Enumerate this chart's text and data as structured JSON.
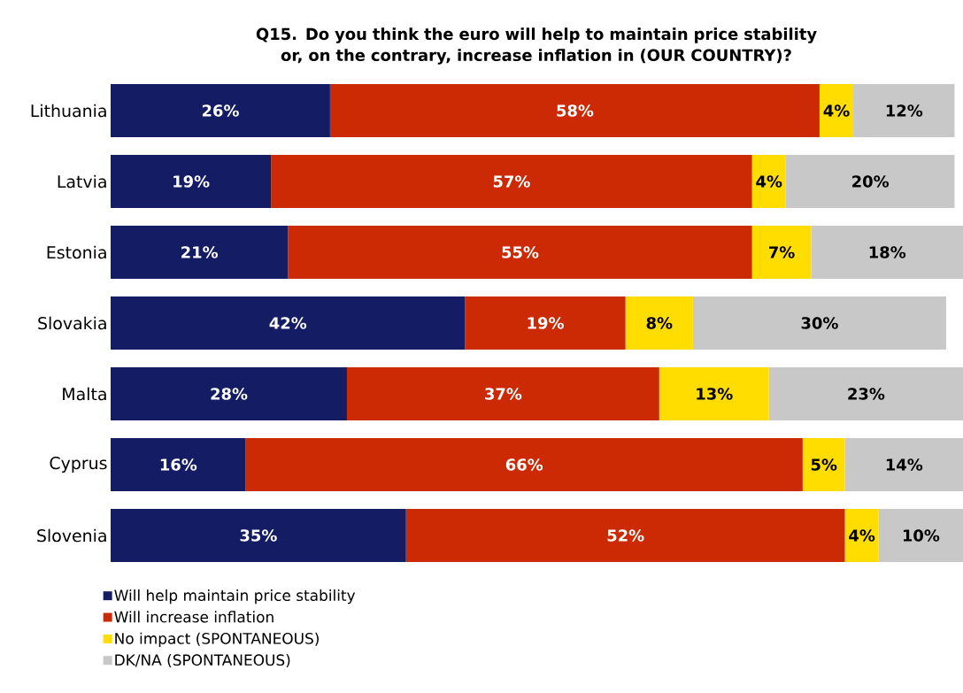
{
  "chart_data": {
    "type": "bar",
    "orientation": "horizontal",
    "stacked": true,
    "title": "Q15. Do you think the euro will help to maintain price stability or, on the contrary, increase inflation in (OUR COUNTRY)?",
    "categories": [
      "Lithuania",
      "Latvia",
      "Estonia",
      "Slovakia",
      "Malta",
      "Cyprus",
      "Slovenia"
    ],
    "xlim": [
      0,
      101
    ],
    "tick_labels": "y",
    "legend": "bottom",
    "series": [
      {
        "name": "Will help maintain price stability",
        "color": "#141c64",
        "values": [
          26,
          19,
          21,
          42,
          28,
          16,
          35
        ],
        "value_labels": [
          "26%",
          "19%",
          "21%",
          "42%",
          "28%",
          "16%",
          "35%"
        ]
      },
      {
        "name": "Will increase inflation",
        "color": "#cc2a04",
        "values": [
          58,
          57,
          55,
          19,
          37,
          66,
          52
        ],
        "value_labels": [
          "58%",
          "57%",
          "55%",
          "19%",
          "37%",
          "66%",
          "52%"
        ]
      },
      {
        "name": "No impact (SPONTANEOUS)",
        "color": "#ffdd00",
        "values": [
          4,
          4,
          7,
          8,
          13,
          5,
          4
        ],
        "value_labels": [
          "4%",
          "4%",
          "7%",
          "8%",
          "13%",
          "5%",
          "4%"
        ]
      },
      {
        "name": "DK/NA (SPONTANEOUS)",
        "color": "#c8c8c8",
        "values": [
          12,
          20,
          18,
          30,
          23,
          14,
          10
        ],
        "value_labels": [
          "12%",
          "20%",
          "18%",
          "30%",
          "23%",
          "14%",
          "10%"
        ]
      }
    ]
  }
}
